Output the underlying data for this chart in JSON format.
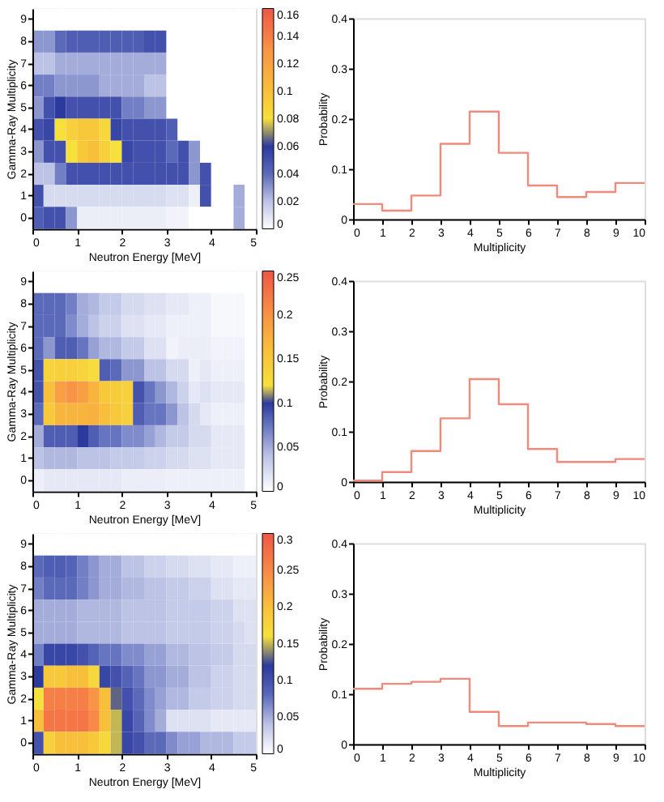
{
  "chart_data": [
    {
      "type": "heatmap",
      "xlabel": "Neutron Energy [MeV]",
      "ylabel": "Gamma-Ray Multiplicity",
      "x": [
        0.125,
        0.375,
        0.625,
        0.875,
        1.125,
        1.375,
        1.625,
        1.875,
        2.125,
        2.375,
        2.625,
        2.875,
        3.125,
        3.375,
        3.625,
        3.875,
        4.125,
        4.375,
        4.625,
        4.875
      ],
      "xlim": [
        0,
        5
      ],
      "xticks": [
        0,
        1,
        2,
        3,
        4,
        5
      ],
      "y_categories": [
        "9",
        "8",
        "7",
        "6",
        "5",
        "4",
        "3",
        "2",
        "1",
        "0"
      ],
      "clim": [
        0,
        0.16
      ],
      "cticks": [
        0,
        0.02,
        0.04,
        0.06,
        0.08,
        0.1,
        0.12,
        0.14,
        0.16
      ],
      "cells": [
        [
          0,
          0,
          0,
          0,
          0,
          0,
          0,
          0,
          0,
          0,
          0,
          0,
          0,
          0,
          0,
          0,
          0,
          0,
          0,
          0
        ],
        [
          0.03,
          0.03,
          0.04,
          0.045,
          0.045,
          0.045,
          0.045,
          0.045,
          0.045,
          0.045,
          0.05,
          0.05,
          0,
          0,
          0,
          0,
          0,
          0,
          0,
          0
        ],
        [
          0.02,
          0.02,
          0.025,
          0.025,
          0.025,
          0.025,
          0.025,
          0.025,
          0.025,
          0.025,
          0.025,
          0.025,
          0,
          0,
          0,
          0,
          0,
          0,
          0,
          0
        ],
        [
          0.035,
          0.035,
          0.03,
          0.03,
          0.03,
          0.03,
          0.025,
          0.025,
          0.025,
          0.025,
          0.02,
          0.02,
          0,
          0,
          0,
          0,
          0,
          0,
          0,
          0
        ],
        [
          0.03,
          0.05,
          0.06,
          0.05,
          0.05,
          0.05,
          0.05,
          0.05,
          0.035,
          0.035,
          0.03,
          0.03,
          0,
          0,
          0,
          0,
          0,
          0,
          0,
          0
        ],
        [
          0.05,
          0.055,
          0.08,
          0.09,
          0.095,
          0.095,
          0.085,
          0.055,
          0.05,
          0.05,
          0.05,
          0.05,
          0.045,
          0,
          0,
          0,
          0,
          0,
          0,
          0
        ],
        [
          0.03,
          0.05,
          0.05,
          0.08,
          0.095,
          0.1,
          0.09,
          0.08,
          0.055,
          0.05,
          0.05,
          0.05,
          0.04,
          0.05,
          0.03,
          0,
          0,
          0,
          0,
          0
        ],
        [
          0.02,
          0.02,
          0.035,
          0.05,
          0.05,
          0.05,
          0.05,
          0.05,
          0.05,
          0.05,
          0.05,
          0.05,
          0.05,
          0.05,
          0.03,
          0.05,
          0,
          0,
          0,
          0
        ],
        [
          0.05,
          0.012,
          0.012,
          0.012,
          0.012,
          0.012,
          0.012,
          0.012,
          0.012,
          0.012,
          0.012,
          0.012,
          0.01,
          0.01,
          0.005,
          0.05,
          0,
          0,
          0.025,
          0
        ],
        [
          0.045,
          0.05,
          0.05,
          0.03,
          0.006,
          0.006,
          0.006,
          0.006,
          0.006,
          0.006,
          0.006,
          0.006,
          0.004,
          0.004,
          0,
          0,
          0,
          0,
          0.025,
          0
        ]
      ]
    },
    {
      "type": "histogram",
      "xlabel": "Multiplicity",
      "ylabel": "Probability",
      "bins": [
        0,
        1,
        2,
        3,
        4,
        5,
        6,
        7,
        8,
        9,
        10
      ],
      "values": [
        0.03,
        0.017,
        0.047,
        0.15,
        0.214,
        0.132,
        0.067,
        0.044,
        0.054,
        0.072
      ],
      "color": "#f08a7c",
      "xlim": [
        0,
        10
      ],
      "xticks": [
        0,
        1,
        2,
        3,
        4,
        5,
        6,
        7,
        8,
        9,
        10
      ],
      "ylim": [
        0,
        0.4
      ],
      "yticks": [
        0,
        0.1,
        0.2,
        0.3,
        0.4
      ]
    },
    {
      "type": "heatmap",
      "xlabel": "Neutron Energy [MeV]",
      "ylabel": "Gamma-Ray Multiplicity",
      "x": [
        0.125,
        0.375,
        0.625,
        0.875,
        1.125,
        1.375,
        1.625,
        1.875,
        2.125,
        2.375,
        2.625,
        2.875,
        3.125,
        3.375,
        3.625,
        3.875,
        4.125,
        4.375,
        4.625,
        4.875
      ],
      "xlim": [
        0,
        5
      ],
      "xticks": [
        0,
        1,
        2,
        3,
        4,
        5
      ],
      "y_categories": [
        "9",
        "8",
        "7",
        "6",
        "5",
        "4",
        "3",
        "2",
        "1",
        "0"
      ],
      "clim": [
        0,
        0.25
      ],
      "cticks": [
        0,
        0.05,
        0.1,
        0.15,
        0.2,
        0.25
      ],
      "cells": [
        [
          0,
          0,
          0,
          0,
          0,
          0,
          0,
          0,
          0,
          0,
          0,
          0,
          0,
          0,
          0,
          0,
          0,
          0,
          0,
          0
        ],
        [
          0.08,
          0.08,
          0.08,
          0.07,
          0.05,
          0.045,
          0.035,
          0.035,
          0.025,
          0.025,
          0.02,
          0.02,
          0.015,
          0.015,
          0.01,
          0.01,
          0.005,
          0.005,
          0.005,
          0
        ],
        [
          0.08,
          0.08,
          0.08,
          0.065,
          0.05,
          0.04,
          0.03,
          0.03,
          0.02,
          0.02,
          0.015,
          0.015,
          0.01,
          0.01,
          0.01,
          0.01,
          0.005,
          0.005,
          0.005,
          0
        ],
        [
          0.08,
          0.06,
          0.085,
          0.085,
          0.075,
          0.055,
          0.045,
          0.045,
          0.035,
          0.035,
          0.02,
          0.02,
          0.008,
          0.012,
          0.012,
          0.012,
          0.008,
          0.008,
          0.008,
          0
        ],
        [
          0.09,
          0.135,
          0.14,
          0.14,
          0.135,
          0.125,
          0.085,
          0.08,
          0.06,
          0.06,
          0.04,
          0.04,
          0.025,
          0.025,
          0.01,
          0.015,
          0.01,
          0.01,
          0.01,
          0
        ],
        [
          0.09,
          0.16,
          0.19,
          0.2,
          0.19,
          0.17,
          0.15,
          0.145,
          0.14,
          0.09,
          0.075,
          0.06,
          0.045,
          0.03,
          0.015,
          0.02,
          0.015,
          0.015,
          0.015,
          0
        ],
        [
          0.08,
          0.15,
          0.17,
          0.17,
          0.17,
          0.175,
          0.16,
          0.15,
          0.14,
          0.085,
          0.075,
          0.075,
          0.06,
          0.04,
          0.025,
          0.015,
          0.01,
          0.01,
          0.01,
          0
        ],
        [
          0.05,
          0.085,
          0.085,
          0.085,
          0.1,
          0.085,
          0.075,
          0.075,
          0.065,
          0.065,
          0.055,
          0.045,
          0.035,
          0.035,
          0.025,
          0.025,
          0.015,
          0.015,
          0.015,
          0
        ],
        [
          0.04,
          0.045,
          0.045,
          0.045,
          0.04,
          0.04,
          0.04,
          0.035,
          0.035,
          0.035,
          0.03,
          0.03,
          0.025,
          0.025,
          0.02,
          0.02,
          0.015,
          0.015,
          0.015,
          0
        ],
        [
          0.01,
          0.015,
          0.015,
          0.015,
          0.015,
          0.015,
          0.015,
          0.015,
          0.012,
          0.012,
          0.012,
          0.012,
          0.01,
          0.01,
          0.01,
          0.01,
          0.01,
          0.01,
          0.01,
          0
        ]
      ]
    },
    {
      "type": "histogram",
      "xlabel": "Multiplicity",
      "ylabel": "Probability",
      "bins": [
        0,
        1,
        2,
        3,
        4,
        5,
        6,
        7,
        8,
        9,
        10
      ],
      "values": [
        0.002,
        0.019,
        0.061,
        0.126,
        0.204,
        0.154,
        0.065,
        0.039,
        0.039,
        0.045
      ],
      "color": "#f08a7c",
      "xlim": [
        0,
        10
      ],
      "xticks": [
        0,
        1,
        2,
        3,
        4,
        5,
        6,
        7,
        8,
        9,
        10
      ],
      "ylim": [
        0,
        0.4
      ],
      "yticks": [
        0,
        0.1,
        0.2,
        0.3,
        0.4
      ]
    },
    {
      "type": "heatmap",
      "xlabel": "Neutron Energy [MeV]",
      "ylabel": "Gamma-Ray Multiplicity",
      "x": [
        0.125,
        0.375,
        0.625,
        0.875,
        1.125,
        1.375,
        1.625,
        1.875,
        2.125,
        2.375,
        2.625,
        2.875,
        3.125,
        3.375,
        3.625,
        3.875,
        4.125,
        4.375,
        4.625,
        4.875
      ],
      "xlim": [
        0,
        5
      ],
      "xticks": [
        0,
        1,
        2,
        3,
        4,
        5
      ],
      "y_categories": [
        "9",
        "8",
        "7",
        "6",
        "5",
        "4",
        "3",
        "2",
        "1",
        "0"
      ],
      "clim": [
        0,
        0.3
      ],
      "cticks": [
        0,
        0.05,
        0.1,
        0.15,
        0.2,
        0.25,
        0.3
      ],
      "cells": [
        [
          0,
          0,
          0,
          0,
          0,
          0,
          0,
          0,
          0,
          0,
          0,
          0,
          0,
          0,
          0,
          0,
          0,
          0,
          0,
          0
        ],
        [
          0.08,
          0.09,
          0.09,
          0.085,
          0.07,
          0.06,
          0.05,
          0.05,
          0.04,
          0.04,
          0.03,
          0.03,
          0.025,
          0.025,
          0.02,
          0.02,
          0.015,
          0.015,
          0.01,
          0.01
        ],
        [
          0.07,
          0.08,
          0.08,
          0.08,
          0.07,
          0.06,
          0.05,
          0.05,
          0.045,
          0.045,
          0.04,
          0.04,
          0.035,
          0.035,
          0.03,
          0.03,
          0.02,
          0.02,
          0.015,
          0.015
        ],
        [
          0.05,
          0.05,
          0.05,
          0.05,
          0.045,
          0.045,
          0.045,
          0.045,
          0.04,
          0.04,
          0.04,
          0.04,
          0.035,
          0.035,
          0.035,
          0.035,
          0.03,
          0.03,
          0.02,
          0.02
        ],
        [
          0.05,
          0.05,
          0.05,
          0.05,
          0.045,
          0.045,
          0.045,
          0.045,
          0.04,
          0.04,
          0.04,
          0.04,
          0.035,
          0.035,
          0.035,
          0.035,
          0.03,
          0.03,
          0.025,
          0.02
        ],
        [
          0.07,
          0.11,
          0.11,
          0.11,
          0.1,
          0.085,
          0.075,
          0.075,
          0.065,
          0.065,
          0.055,
          0.055,
          0.045,
          0.045,
          0.04,
          0.04,
          0.035,
          0.035,
          0.025,
          0.025
        ],
        [
          0.12,
          0.19,
          0.19,
          0.2,
          0.2,
          0.17,
          0.11,
          0.1,
          0.085,
          0.075,
          0.06,
          0.06,
          0.05,
          0.05,
          0.04,
          0.04,
          0.03,
          0.03,
          0.025,
          0.025
        ],
        [
          0.16,
          0.26,
          0.26,
          0.26,
          0.26,
          0.24,
          0.2,
          0.13,
          0.1,
          0.08,
          0.065,
          0.055,
          0.045,
          0.045,
          0.035,
          0.035,
          0.03,
          0.03,
          0.025,
          0.025
        ],
        [
          0.2,
          0.27,
          0.27,
          0.27,
          0.27,
          0.25,
          0.2,
          0.15,
          0.11,
          0.085,
          0.065,
          0.05,
          0.02,
          0.02,
          0.02,
          0.02,
          0.015,
          0.015,
          0.015,
          0.015
        ],
        [
          0.1,
          0.18,
          0.2,
          0.2,
          0.2,
          0.19,
          0.17,
          0.15,
          0.11,
          0.1,
          0.08,
          0.08,
          0.065,
          0.055,
          0.055,
          0.045,
          0.045,
          0.045,
          0.035,
          0.035
        ]
      ]
    },
    {
      "type": "histogram",
      "xlabel": "Multiplicity",
      "ylabel": "Probability",
      "bins": [
        0,
        1,
        2,
        3,
        4,
        5,
        6,
        7,
        8,
        9,
        10
      ],
      "values": [
        0.11,
        0.12,
        0.124,
        0.13,
        0.064,
        0.036,
        0.043,
        0.043,
        0.04,
        0.036
      ],
      "color": "#f08a7c",
      "xlim": [
        0,
        10
      ],
      "xticks": [
        0,
        1,
        2,
        3,
        4,
        5,
        6,
        7,
        8,
        9,
        10
      ],
      "ylim": [
        0,
        0.4
      ],
      "yticks": [
        0,
        0.1,
        0.2,
        0.3,
        0.4
      ]
    }
  ]
}
